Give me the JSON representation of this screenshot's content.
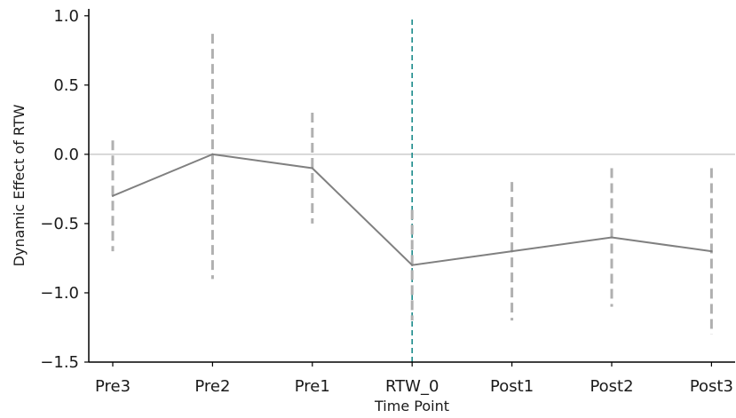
{
  "chart_data": {
    "type": "line",
    "xlabel": "Time Point",
    "ylabel": "Dynamic Effect of RTW",
    "categories": [
      "Pre3",
      "Pre2",
      "Pre1",
      "RTW_0",
      "Post1",
      "Post2",
      "Post3"
    ],
    "ylim": [
      -1.5,
      1.05
    ],
    "yticks": [
      -1.5,
      -1.0,
      -0.5,
      0.0,
      0.5,
      1.0
    ],
    "ytick_labels": [
      "−1.5",
      "−1.0",
      "−0.5",
      "0.0",
      "0.5",
      "1.0"
    ],
    "series": [
      {
        "values": [
          -0.3,
          0.0,
          -0.1,
          -0.8,
          -0.7,
          -0.6,
          -0.7
        ],
        "ci_lower": [
          -0.7,
          -0.9,
          -0.5,
          -1.2,
          -1.2,
          -1.1,
          -1.3
        ],
        "ci_upper": [
          0.1,
          0.87,
          0.3,
          -0.4,
          -0.2,
          -0.1,
          -0.1
        ]
      }
    ],
    "reference_lines": {
      "horizontal_y": 0.0,
      "vertical_category": "RTW_0"
    },
    "grid": false,
    "legend": "none",
    "colors": {
      "line": "#808080",
      "error_bar": "#b0b0b0",
      "zero_line": "#cccccc",
      "event_line": "#1a8a8a",
      "axis": "#000000"
    }
  }
}
